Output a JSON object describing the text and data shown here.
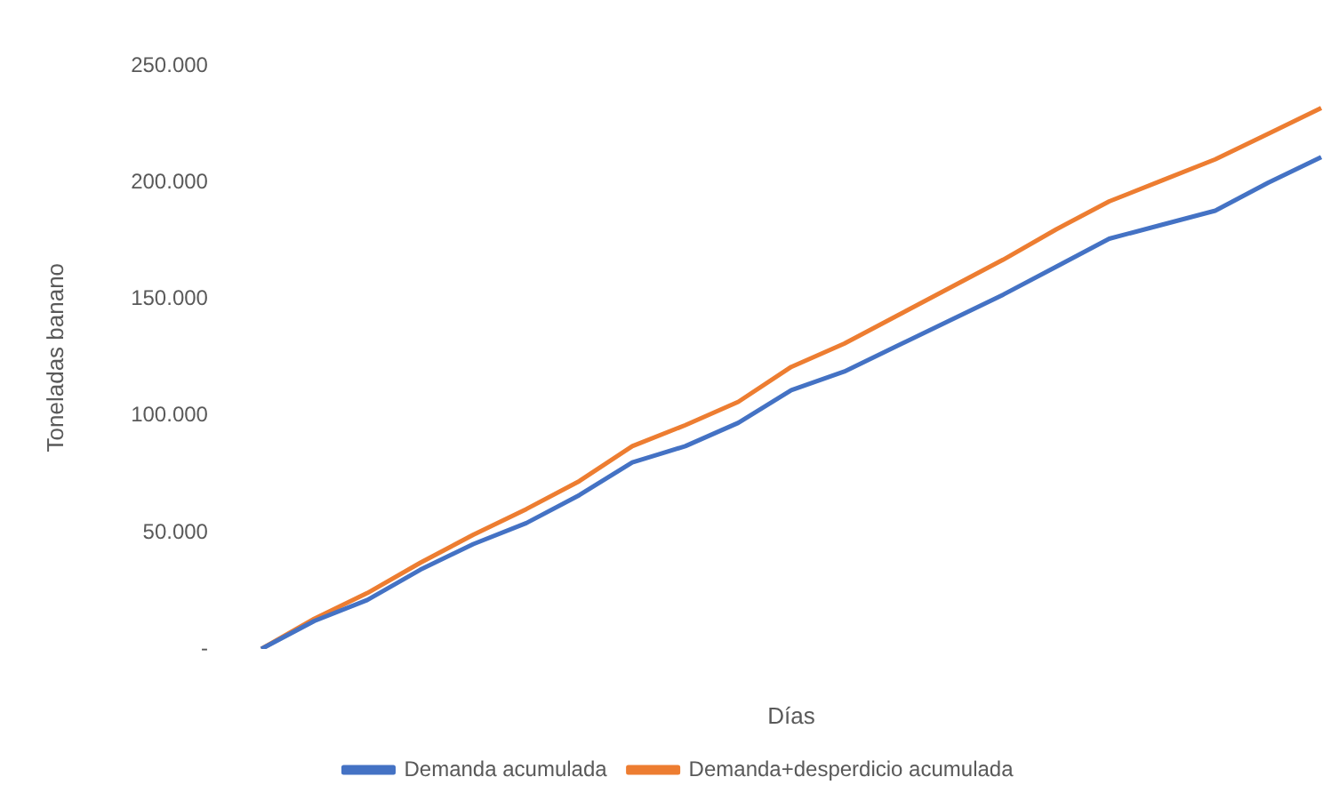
{
  "chart_data": {
    "type": "line",
    "xlabel": "Días",
    "ylabel": "Toneladas banano",
    "categories": [
      null,
      null,
      null,
      null,
      null,
      null,
      null,
      null,
      null,
      null,
      null,
      null,
      null,
      null,
      null,
      null,
      null,
      null,
      null,
      null,
      null
    ],
    "series": [
      {
        "name": "Demanda acumulada",
        "color": "#4472c4",
        "values": [
          0,
          12000,
          21000,
          34000,
          45000,
          54000,
          66000,
          80000,
          87000,
          97000,
          111000,
          119000,
          130000,
          141000,
          152000,
          164000,
          176000,
          182000,
          188000,
          200000,
          211000
        ]
      },
      {
        "name": "Demanda+desperdicio acumulada",
        "color": "#ed7d31",
        "values": [
          0,
          13000,
          24000,
          37000,
          49000,
          60000,
          72000,
          87000,
          96000,
          106000,
          121000,
          131000,
          143000,
          155000,
          167000,
          180000,
          192000,
          201000,
          210000,
          221000,
          232000
        ]
      }
    ],
    "ylim": [
      0,
      250000
    ],
    "yticks": [
      {
        "value": 0,
        "label": "-"
      },
      {
        "value": 50000,
        "label": "50.000"
      },
      {
        "value": 100000,
        "label": "100.000"
      },
      {
        "value": 150000,
        "label": "150.000"
      },
      {
        "value": 200000,
        "label": "200.000"
      },
      {
        "value": 250000,
        "label": "250.000"
      }
    ],
    "grid": false,
    "legend": "bottom",
    "marker": "none",
    "line_style": "solid"
  }
}
